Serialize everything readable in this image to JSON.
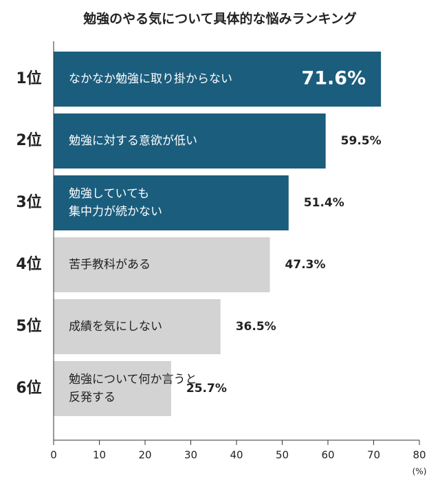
{
  "chart_data": {
    "type": "barh",
    "title": "勉強のやる気について具体的な悩みランキング",
    "ranks": [
      "1位",
      "2位",
      "3位",
      "4位",
      "5位",
      "6位"
    ],
    "categories": [
      "なかなか勉強に取り掛からない",
      "勉強に対する意欲が低い",
      "勉強していても\n集中力が続かない",
      "苦手教科がある",
      "成績を気にしない",
      "勉強について何か言うと\n反発する"
    ],
    "values": [
      71.6,
      59.5,
      51.4,
      47.3,
      36.5,
      25.7
    ],
    "value_labels": [
      "71.6%",
      "59.5%",
      "51.4%",
      "47.3%",
      "36.5%",
      "25.7%"
    ],
    "colors": [
      "#1b5d7d",
      "#1b5d7d",
      "#1b5d7d",
      "#d3d3d3",
      "#d3d3d3",
      "#d3d3d3"
    ],
    "label_colors": [
      "#ffffff",
      "#ffffff",
      "#ffffff",
      "#222222",
      "#222222",
      "#222222"
    ],
    "xlim": [
      0,
      80
    ],
    "xticks": [
      0,
      10,
      20,
      30,
      40,
      50,
      60,
      70,
      80
    ],
    "x_unit": "(%)"
  }
}
